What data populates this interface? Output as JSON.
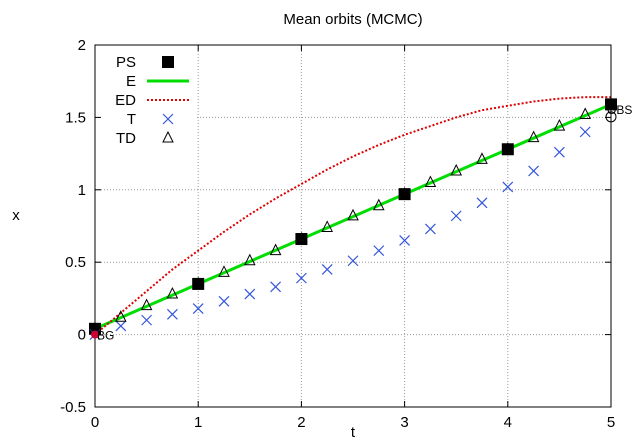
{
  "chart_data": {
    "type": "line",
    "title": "Mean orbits (MCMC)",
    "xlabel": "t",
    "ylabel": "x",
    "xlim": [
      0,
      5
    ],
    "ylim": [
      -0.5,
      2
    ],
    "xticks": [
      "0",
      "1",
      "2",
      "3",
      "4",
      "5"
    ],
    "yticks": [
      "-0.5",
      "0",
      "0.5",
      "1",
      "1.5",
      "2"
    ],
    "grid": true,
    "legend_position": "top-left",
    "series": [
      {
        "name": "PS",
        "style": "filled-square",
        "color": "#000000",
        "x": [
          0,
          1,
          2,
          3,
          4,
          5
        ],
        "y": [
          0.04,
          0.35,
          0.66,
          0.97,
          1.28,
          1.59
        ]
      },
      {
        "name": "E",
        "style": "solid-line",
        "color": "#00dd00",
        "x": [
          0,
          5
        ],
        "y": [
          0.04,
          1.59
        ]
      },
      {
        "name": "ED",
        "style": "dotted-line",
        "color": "#dd0000",
        "x": [
          0,
          0.25,
          0.5,
          0.75,
          1,
          1.25,
          1.5,
          1.75,
          2,
          2.25,
          2.5,
          2.75,
          3,
          3.25,
          3.5,
          3.75,
          4,
          4.25,
          4.5,
          4.75,
          5
        ],
        "y": [
          0.0,
          0.15,
          0.3,
          0.45,
          0.58,
          0.71,
          0.83,
          0.94,
          1.04,
          1.14,
          1.23,
          1.31,
          1.38,
          1.44,
          1.5,
          1.55,
          1.58,
          1.61,
          1.63,
          1.64,
          1.64
        ]
      },
      {
        "name": "T",
        "style": "cross",
        "color": "#3355dd",
        "x": [
          0,
          0.25,
          0.5,
          0.75,
          1,
          1.25,
          1.5,
          1.75,
          2,
          2.25,
          2.5,
          2.75,
          3,
          3.25,
          3.5,
          3.75,
          4,
          4.25,
          4.5,
          4.75
        ],
        "y": [
          0.0,
          0.06,
          0.1,
          0.14,
          0.18,
          0.23,
          0.28,
          0.33,
          0.39,
          0.45,
          0.51,
          0.58,
          0.65,
          0.73,
          0.82,
          0.91,
          1.02,
          1.13,
          1.26,
          1.4
        ]
      },
      {
        "name": "TD",
        "style": "open-triangle",
        "color": "#000000",
        "x": [
          0,
          0.25,
          0.5,
          0.75,
          1,
          1.25,
          1.5,
          1.75,
          2,
          2.25,
          2.5,
          2.75,
          3,
          3.25,
          3.5,
          3.75,
          4,
          4.25,
          4.5,
          4.75,
          5
        ],
        "y": [
          0.04,
          0.12,
          0.2,
          0.28,
          0.35,
          0.43,
          0.51,
          0.58,
          0.66,
          0.74,
          0.82,
          0.89,
          0.97,
          1.05,
          1.13,
          1.21,
          1.28,
          1.36,
          1.44,
          1.52,
          1.59
        ]
      }
    ],
    "annotations": [
      {
        "text": "BG",
        "x": 0,
        "y": 0.0,
        "marker": "filled-circle",
        "color": "#cc0033"
      },
      {
        "text": "OBS",
        "x": 5,
        "y": 1.58,
        "marker": "open-circle",
        "color": "#000000"
      }
    ]
  }
}
